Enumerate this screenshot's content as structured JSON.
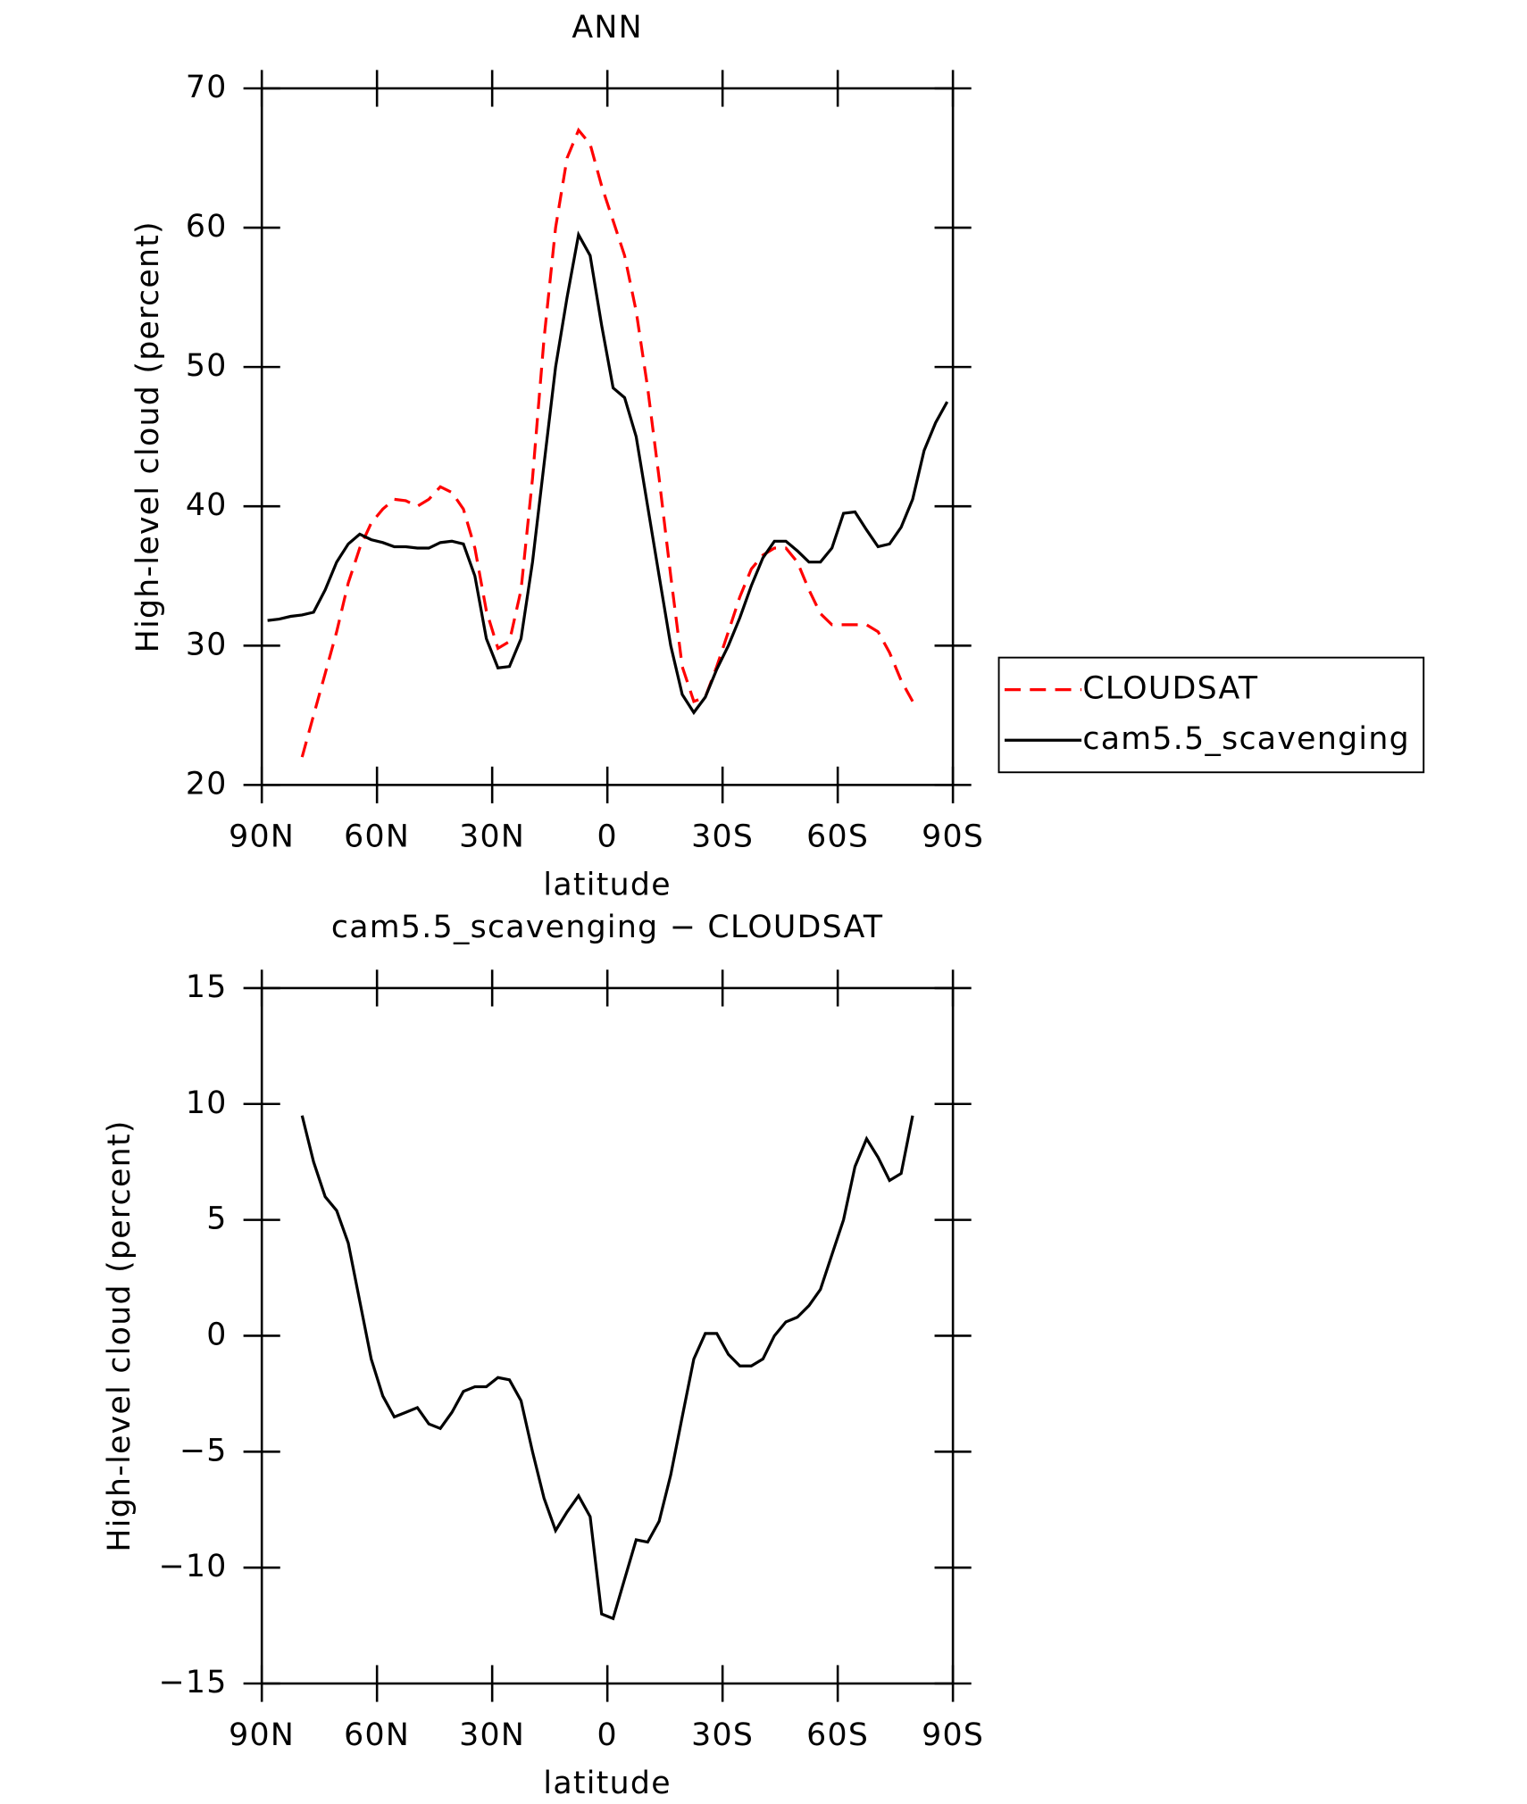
{
  "chart_data": [
    {
      "type": "line",
      "title": "ANN",
      "xlabel": "latitude",
      "ylabel": "High-level cloud (percent)",
      "x": [
        88.5,
        85.5,
        82.5,
        79.5,
        76.5,
        73.5,
        70.5,
        67.5,
        64.5,
        61.5,
        58.5,
        55.5,
        52.5,
        49.5,
        46.5,
        43.5,
        40.5,
        37.5,
        34.5,
        31.5,
        28.5,
        25.5,
        22.5,
        19.5,
        16.5,
        13.5,
        10.5,
        7.5,
        4.5,
        1.5,
        -1.5,
        -4.5,
        -7.5,
        -10.5,
        -13.5,
        -16.5,
        -19.5,
        -22.5,
        -25.5,
        -28.5,
        -31.5,
        -34.5,
        -37.5,
        -40.5,
        -43.5,
        -46.5,
        -49.5,
        -52.5,
        -55.5,
        -58.5,
        -61.5,
        -64.5,
        -67.5,
        -70.5,
        -73.5,
        -76.5,
        -79.5,
        -82.5,
        -85.5,
        -88.5
      ],
      "series": [
        {
          "name": "CLOUDSAT",
          "color": "#ff0000",
          "dashed": true,
          "values": [
            null,
            null,
            null,
            22,
            25,
            28,
            31,
            34.5,
            37,
            38.8,
            39.8,
            40.5,
            40.4,
            40,
            40.5,
            41.4,
            41,
            39.8,
            37,
            32.5,
            29.8,
            30.3,
            34,
            42,
            52,
            60,
            65,
            67,
            66,
            63,
            60.5,
            58,
            54,
            48.5,
            42,
            35,
            28.5,
            26,
            26.3,
            28.5,
            31,
            33.5,
            35.5,
            36.5,
            37,
            37,
            36,
            34,
            32.3,
            31.5,
            31.5,
            31.5,
            31.5,
            31,
            29.5,
            27.5,
            26,
            null,
            null,
            null
          ]
        },
        {
          "name": "cam5.5_scavenging",
          "color": "#000000",
          "dashed": false,
          "values": [
            31.8,
            31.9,
            32.1,
            32.2,
            32.4,
            34,
            36,
            37.3,
            38,
            37.6,
            37.4,
            37.1,
            37.1,
            37,
            37,
            37.4,
            37.5,
            37.3,
            35,
            30.5,
            28.4,
            28.5,
            30.5,
            36,
            43,
            50,
            55,
            59.5,
            58,
            53,
            48.5,
            47.8,
            45,
            40,
            35,
            30,
            26.5,
            25.2,
            26.3,
            28.3,
            30,
            32,
            34.3,
            36.3,
            37.5,
            37.5,
            36.8,
            36,
            36,
            37,
            39.5,
            39.6,
            38.3,
            37.1,
            37.3,
            38.5,
            40.5,
            44,
            46,
            47.5
          ]
        }
      ],
      "xlim": [
        90,
        -90
      ],
      "xticks": [
        {
          "value": 90,
          "label": "90N"
        },
        {
          "value": 60,
          "label": "60N"
        },
        {
          "value": 30,
          "label": "30N"
        },
        0,
        {
          "value": -30,
          "label": "30S"
        },
        {
          "value": -60,
          "label": "60S"
        },
        {
          "value": -90,
          "label": "90S"
        }
      ],
      "ylim": [
        20,
        70
      ],
      "yticks": [
        20,
        30,
        40,
        50,
        60,
        70
      ],
      "legend": "right"
    },
    {
      "type": "line",
      "title": "cam5.5_scavenging − CLOUDSAT",
      "xlabel": "latitude",
      "ylabel": "High-level cloud (percent)",
      "x": [
        79.5,
        76.5,
        73.5,
        70.5,
        67.5,
        64.5,
        61.5,
        58.5,
        55.5,
        52.5,
        49.5,
        46.5,
        43.5,
        40.5,
        37.5,
        34.5,
        31.5,
        28.5,
        25.5,
        22.5,
        19.5,
        16.5,
        13.5,
        10.5,
        7.5,
        4.5,
        1.5,
        -1.5,
        -4.5,
        -7.5,
        -10.5,
        -13.5,
        -16.5,
        -19.5,
        -22.5,
        -25.5,
        -28.5,
        -31.5,
        -34.5,
        -37.5,
        -40.5,
        -43.5,
        -46.5,
        -49.5,
        -52.5,
        -55.5,
        -58.5,
        -61.5,
        -64.5,
        -67.5,
        -70.5,
        -73.5,
        -76.5,
        -79.5
      ],
      "series": [
        {
          "color": "#000000",
          "dashed": false,
          "values": [
            9.5,
            7.5,
            6,
            5.4,
            4,
            1.5,
            -1,
            -2.6,
            -3.5,
            -3.3,
            -3.1,
            -3.8,
            -4,
            -3.3,
            -2.4,
            -2.2,
            -2.2,
            -1.8,
            -1.9,
            -2.8,
            -5,
            -7,
            -8.4,
            -7.6,
            -6.9,
            -7.8,
            -12,
            -12.2,
            -10.5,
            -8.8,
            -8.9,
            -8,
            -6,
            -3.5,
            -1,
            0.1,
            0.1,
            -0.8,
            -1.3,
            -1.3,
            -1,
            0,
            0.6,
            0.8,
            1.3,
            2,
            3.5,
            5,
            7.3,
            8.5,
            7.7,
            6.7,
            7,
            9.5
          ]
        }
      ],
      "xlim": [
        90,
        -90
      ],
      "xticks": [
        {
          "value": 90,
          "label": "90N"
        },
        {
          "value": 60,
          "label": "60N"
        },
        {
          "value": 30,
          "label": "30N"
        },
        0,
        {
          "value": -30,
          "label": "30S"
        },
        {
          "value": -60,
          "label": "60S"
        },
        {
          "value": -90,
          "label": "90S"
        }
      ],
      "ylim": [
        -15,
        15
      ],
      "yticks": [
        {
          "value": -15,
          "label": "−15"
        },
        {
          "value": -10,
          "label": "−10"
        },
        {
          "value": -5,
          "label": "−5"
        },
        0,
        5,
        10,
        15
      ]
    }
  ]
}
